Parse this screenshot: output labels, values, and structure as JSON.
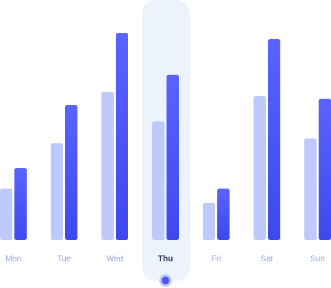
{
  "chart_data": {
    "type": "bar",
    "categories": [
      "Mon",
      "Tue",
      "Wed",
      "Thu",
      "Fri",
      "Sat",
      "Sun"
    ],
    "series": [
      {
        "color": "#bfcafc",
        "values": [
          75,
          141,
          216,
          173,
          54,
          210,
          148
        ]
      },
      {
        "color": "#4450f4",
        "values": [
          105,
          197,
          302,
          241,
          75,
          293,
          206
        ]
      }
    ],
    "selected_index": 3
  }
}
